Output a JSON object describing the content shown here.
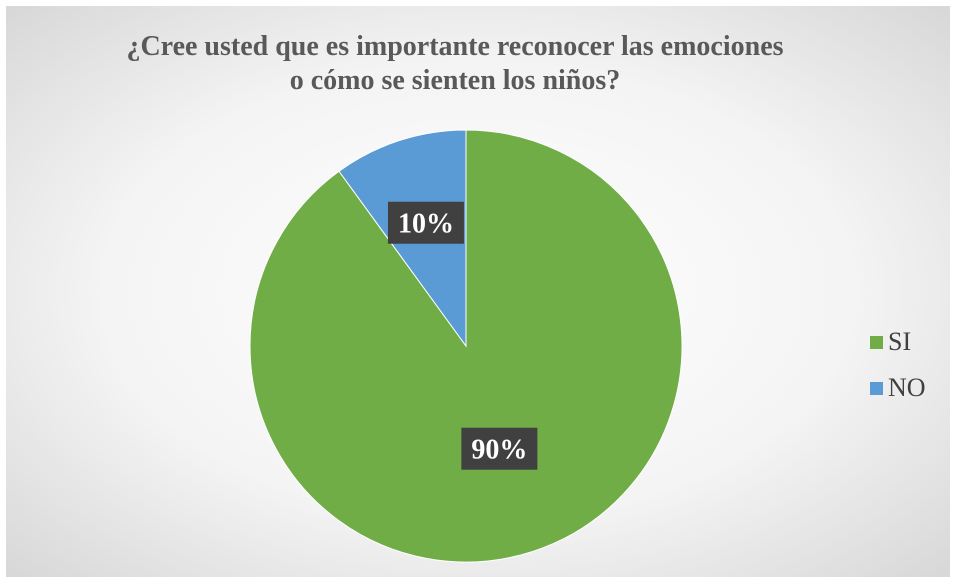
{
  "chart_data": {
    "type": "pie",
    "title_lines": [
      "¿Cree usted que es importante reconocer las emociones",
      "o cómo se sienten los niños?"
    ],
    "categories": [
      "SI",
      "NO"
    ],
    "values": [
      90,
      10
    ],
    "data_labels": [
      "90%",
      "10%"
    ],
    "colors": [
      "#70AD47",
      "#5B9BD5"
    ],
    "label_background": "#404040",
    "start_angle_deg": 0,
    "direction": "clockwise",
    "legend_position": "right",
    "background": "radial-gradient white to light gray"
  }
}
